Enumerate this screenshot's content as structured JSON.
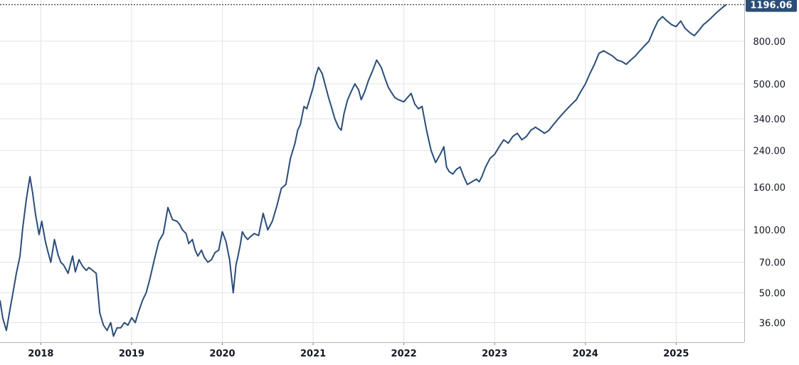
{
  "chart_data": {
    "type": "line",
    "title": "",
    "xlabel": "",
    "ylabel": "",
    "yscale": "log",
    "ylim": [
      29,
      1260
    ],
    "xlim": [
      2017.55,
      2025.75
    ],
    "grid": true,
    "line_color": "#2a4d78",
    "last_price_color": "#2a4d78",
    "last_price_label": "1196.06",
    "last_value": 1196.06,
    "y_ticks": [
      {
        "value": 36,
        "label": "36.00"
      },
      {
        "value": 50,
        "label": "50.00"
      },
      {
        "value": 70,
        "label": "70.00"
      },
      {
        "value": 100,
        "label": "100.00"
      },
      {
        "value": 160,
        "label": "160.00"
      },
      {
        "value": 240,
        "label": "240.00"
      },
      {
        "value": 340,
        "label": "340.00"
      },
      {
        "value": 500,
        "label": "500.00"
      },
      {
        "value": 800,
        "label": "800.00"
      }
    ],
    "x_ticks": [
      {
        "value": 2018,
        "label": "2018"
      },
      {
        "value": 2019,
        "label": "2019"
      },
      {
        "value": 2020,
        "label": "2020"
      },
      {
        "value": 2021,
        "label": "2021"
      },
      {
        "value": 2022,
        "label": "2022"
      },
      {
        "value": 2023,
        "label": "2023"
      },
      {
        "value": 2024,
        "label": "2024"
      },
      {
        "value": 2025,
        "label": "2025"
      }
    ],
    "series": [
      {
        "x": [
          2017.55,
          2017.58,
          2017.62,
          2017.67,
          2017.7,
          2017.73,
          2017.77,
          2017.8,
          2017.84,
          2017.88,
          2017.91,
          2017.94,
          2017.98,
          2018.01,
          2018.05,
          2018.08,
          2018.11,
          2018.15,
          2018.19,
          2018.22,
          2018.25,
          2018.3,
          2018.35,
          2018.38,
          2018.42,
          2018.46,
          2018.5,
          2018.53,
          2018.57,
          2018.61,
          2018.65,
          2018.69,
          2018.73,
          2018.77,
          2018.8,
          2018.84,
          2018.88,
          2018.92,
          2018.96,
          2019.0,
          2019.04,
          2019.08,
          2019.12,
          2019.16,
          2019.2,
          2019.25,
          2019.3,
          2019.35,
          2019.4,
          2019.45,
          2019.5,
          2019.53,
          2019.56,
          2019.6,
          2019.63,
          2019.67,
          2019.7,
          2019.73,
          2019.77,
          2019.8,
          2019.84,
          2019.88,
          2019.92,
          2019.96,
          2020.0,
          2020.04,
          2020.08,
          2020.12,
          2020.15,
          2020.17,
          2020.2,
          2020.22,
          2020.25,
          2020.28,
          2020.3,
          2020.35,
          2020.4,
          2020.45,
          2020.5,
          2020.55,
          2020.6,
          2020.65,
          2020.7,
          2020.75,
          2020.8,
          2020.83,
          2020.86,
          2020.9,
          2020.93,
          2020.96,
          2021.0,
          2021.03,
          2021.06,
          2021.1,
          2021.13,
          2021.17,
          2021.2,
          2021.24,
          2021.28,
          2021.31,
          2021.34,
          2021.38,
          2021.42,
          2021.46,
          2021.5,
          2021.53,
          2021.57,
          2021.61,
          2021.65,
          2021.7,
          2021.75,
          2021.8,
          2021.83,
          2021.87,
          2021.9,
          2021.94,
          2022.0,
          2022.04,
          2022.08,
          2022.12,
          2022.16,
          2022.2,
          2022.25,
          2022.3,
          2022.35,
          2022.4,
          2022.44,
          2022.47,
          2022.5,
          2022.54,
          2022.58,
          2022.62,
          2022.66,
          2022.7,
          2022.75,
          2022.8,
          2022.83,
          2022.86,
          2022.9,
          2022.95,
          2023.0,
          2023.05,
          2023.1,
          2023.15,
          2023.2,
          2023.25,
          2023.3,
          2023.35,
          2023.4,
          2023.45,
          2023.5,
          2023.55,
          2023.6,
          2023.65,
          2023.7,
          2023.75,
          2023.8,
          2023.85,
          2023.9,
          2023.95,
          2024.0,
          2024.05,
          2024.1,
          2024.15,
          2024.2,
          2024.25,
          2024.3,
          2024.35,
          2024.4,
          2024.45,
          2024.5,
          2024.55,
          2024.6,
          2024.65,
          2024.7,
          2024.75,
          2024.8,
          2024.85,
          2024.9,
          2024.95,
          2025.0,
          2025.05,
          2025.1,
          2025.15,
          2025.2,
          2025.25,
          2025.3,
          2025.35,
          2025.4,
          2025.45,
          2025.5,
          2025.55
        ],
        "y": [
          46,
          38,
          33,
          44,
          52,
          62,
          75,
          102,
          140,
          180,
          150,
          120,
          95,
          110,
          88,
          78,
          70,
          90,
          76,
          70,
          68,
          62,
          75,
          63,
          72,
          67,
          64,
          66,
          64,
          62,
          40,
          35,
          33,
          36,
          31,
          34,
          34,
          36,
          35,
          38,
          36,
          41,
          46,
          50,
          58,
          72,
          88,
          96,
          128,
          112,
          110,
          106,
          100,
          96,
          86,
          90,
          80,
          75,
          80,
          74,
          70,
          72,
          78,
          80,
          98,
          88,
          72,
          50,
          68,
          74,
          86,
          98,
          93,
          90,
          92,
          96,
          94,
          120,
          100,
          110,
          130,
          158,
          165,
          220,
          260,
          300,
          320,
          390,
          380,
          420,
          480,
          550,
          600,
          560,
          500,
          430,
          390,
          340,
          310,
          300,
          360,
          420,
          460,
          500,
          470,
          420,
          460,
          520,
          570,
          650,
          600,
          520,
          480,
          450,
          430,
          420,
          410,
          430,
          450,
          400,
          380,
          390,
          300,
          240,
          210,
          230,
          250,
          200,
          190,
          185,
          195,
          200,
          180,
          165,
          170,
          175,
          170,
          180,
          200,
          220,
          230,
          250,
          270,
          260,
          280,
          290,
          270,
          280,
          300,
          310,
          300,
          290,
          300,
          320,
          340,
          360,
          380,
          400,
          420,
          460,
          500,
          560,
          620,
          700,
          720,
          700,
          680,
          650,
          640,
          620,
          650,
          680,
          720,
          760,
          800,
          900,
          1000,
          1050,
          1000,
          960,
          940,
          1000,
          920,
          880,
          850,
          900,
          960,
          1000,
          1050,
          1100,
          1150,
          1196.06
        ]
      }
    ]
  }
}
